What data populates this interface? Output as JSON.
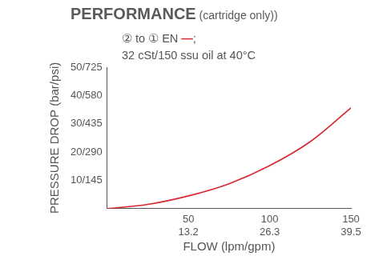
{
  "chart_data": {
    "type": "line",
    "title": "PERFORMANCE (cartridge only))",
    "subtitle": [
      "② to ① EN —;",
      "32 cSt/150 ssu oil at 40°C"
    ],
    "x_label": "FLOW (lpm/gpm)",
    "y_label": "PRESSURE DROP (bar/psi)",
    "x": [
      0,
      25,
      50,
      75,
      100,
      125,
      150
    ],
    "values": [
      0,
      1.5,
      4.5,
      8.8,
      15.2,
      23.7,
      35.6
    ],
    "color": "#d7282f",
    "xlim": [
      0,
      150
    ],
    "xticks": [
      {
        "value": 50,
        "label": [
          "50",
          "13.2"
        ]
      },
      {
        "value": 100,
        "label": [
          "100",
          "26.3"
        ]
      },
      {
        "value": 150,
        "label": [
          "150",
          "39.5"
        ]
      }
    ],
    "ylim": [
      0,
      50
    ],
    "yticks": [
      {
        "value": 10,
        "label": "10/145"
      },
      {
        "value": 20,
        "label": "20/290"
      },
      {
        "value": 30,
        "label": "30/435"
      },
      {
        "value": 40,
        "label": "40/580"
      },
      {
        "value": 50,
        "label": "50/725"
      }
    ],
    "grid": false
  }
}
